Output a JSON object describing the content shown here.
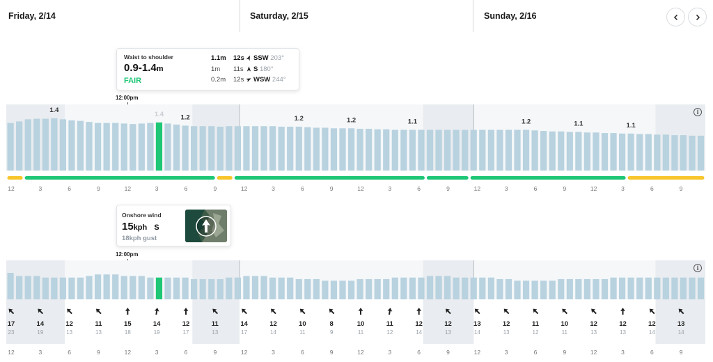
{
  "days": [
    {
      "label": "Friday, 2/14"
    },
    {
      "label": "Saturday, 2/15"
    },
    {
      "label": "Sunday, 2/16"
    }
  ],
  "nav": {
    "prev_icon": "chevron-left-icon",
    "next_icon": "chevron-right-icon"
  },
  "now_label": "12:00pm",
  "surf_tooltip": {
    "label": "Waist to shoulder",
    "height_main": "0.9-1.4",
    "height_unit": "m",
    "rating": "FAIR",
    "swells": [
      {
        "height": "1.1m",
        "period": "12s",
        "dir": "SSW",
        "deg": "203°",
        "rot": 203
      },
      {
        "height": "1m",
        "period": "11s",
        "dir": "S",
        "deg": "180°",
        "rot": 180
      },
      {
        "height": "0.2m",
        "period": "12s",
        "dir": "WSW",
        "deg": "244°",
        "rot": 244
      }
    ]
  },
  "wind_tooltip": {
    "label": "Onshore wind",
    "speed": "15",
    "unit": "kph",
    "dir": "S",
    "gust": "18kph gust"
  },
  "colors": {
    "bar": "#b8d2df",
    "bar_selected": "#1ec776",
    "night": "#e9ecf0",
    "rating_good": "#1ec776",
    "rating_poor": "#f8c62c"
  },
  "surf_chart": {
    "heights": [
      0.9,
      0.93,
      0.97,
      0.98,
      0.98,
      0.99,
      0.97,
      0.95,
      0.94,
      0.92,
      0.9,
      0.9,
      0.9,
      0.89,
      0.88,
      0.89,
      0.9,
      0.91,
      0.89,
      0.87,
      0.85,
      0.84,
      0.84,
      0.84,
      0.83,
      0.84,
      0.84,
      0.84,
      0.84,
      0.84,
      0.84,
      0.83,
      0.83,
      0.83,
      0.82,
      0.81,
      0.81,
      0.8,
      0.8,
      0.8,
      0.79,
      0.79,
      0.78,
      0.78,
      0.77,
      0.77,
      0.77,
      0.77,
      0.77,
      0.77,
      0.77,
      0.77,
      0.77,
      0.77,
      0.77,
      0.77,
      0.77,
      0.77,
      0.77,
      0.77,
      0.76,
      0.75,
      0.74,
      0.74,
      0.73,
      0.73,
      0.72,
      0.72,
      0.71,
      0.71,
      0.7,
      0.7,
      0.69,
      0.69,
      0.68,
      0.68,
      0.67,
      0.67,
      0.66,
      0.66
    ],
    "peak_labels": [
      {
        "index": 5,
        "text": "1.4"
      },
      {
        "index": 17,
        "text": "1.4"
      },
      {
        "index": 20,
        "text": "1.2"
      },
      {
        "index": 33,
        "text": "1.2"
      },
      {
        "index": 39,
        "text": "1.2"
      },
      {
        "index": 46,
        "text": "1.1"
      },
      {
        "index": 59,
        "text": "1.2"
      },
      {
        "index": 65,
        "text": "1.1"
      },
      {
        "index": 71,
        "text": "1.1"
      }
    ],
    "selected_index": 17,
    "rating_segments": [
      {
        "start": 0,
        "end": 2,
        "rating": "poor"
      },
      {
        "start": 2,
        "end": 24,
        "rating": "good"
      },
      {
        "start": 24,
        "end": 26,
        "rating": "poor"
      },
      {
        "start": 26,
        "end": 48,
        "rating": "good"
      },
      {
        "start": 48,
        "end": 53,
        "rating": "good"
      },
      {
        "start": 53,
        "end": 71,
        "rating": "good"
      },
      {
        "start": 71,
        "end": 80,
        "rating": "poor"
      }
    ],
    "time_ticks": [
      "12",
      "3",
      "6",
      "9",
      "12",
      "3",
      "6",
      "9",
      "12",
      "3",
      "6",
      "9",
      "12",
      "3",
      "6",
      "9",
      "12",
      "3",
      "6",
      "9",
      "12",
      "3",
      "6",
      "9"
    ]
  },
  "wind_chart": {
    "speeds": [
      17,
      15,
      15,
      15,
      14,
      14,
      14,
      14,
      14,
      15,
      16,
      16,
      16,
      15,
      15,
      15,
      14,
      14,
      14,
      14,
      14,
      13,
      13,
      13,
      13,
      14,
      14,
      15,
      15,
      15,
      14,
      14,
      14,
      13,
      13,
      13,
      12,
      12,
      12,
      12,
      13,
      13,
      13,
      13,
      14,
      14,
      14,
      14,
      15,
      15,
      15,
      14,
      14,
      14,
      14,
      14,
      13,
      13,
      12,
      12,
      12,
      12,
      12,
      13,
      13,
      13,
      13,
      13,
      13,
      14,
      14,
      14,
      14,
      14,
      14,
      14,
      14,
      14,
      14,
      14
    ],
    "selected_index": 17,
    "columns": [
      {
        "speed": "17",
        "gust": "23",
        "rot": 315
      },
      {
        "speed": "14",
        "gust": "19",
        "rot": 315
      },
      {
        "speed": "12",
        "gust": "13",
        "rot": 315
      },
      {
        "speed": "11",
        "gust": "13",
        "rot": 315
      },
      {
        "speed": "15",
        "gust": "18",
        "rot": 0
      },
      {
        "speed": "14",
        "gust": "19",
        "rot": 10
      },
      {
        "speed": "12",
        "gust": "17",
        "rot": 0
      },
      {
        "speed": "11",
        "gust": "13",
        "rot": 315
      },
      {
        "speed": "14",
        "gust": "17",
        "rot": 315
      },
      {
        "speed": "12",
        "gust": "14",
        "rot": 315
      },
      {
        "speed": "10",
        "gust": "11",
        "rot": 315
      },
      {
        "speed": "8",
        "gust": "9",
        "rot": 315
      },
      {
        "speed": "10",
        "gust": "11",
        "rot": 0
      },
      {
        "speed": "11",
        "gust": "12",
        "rot": 10
      },
      {
        "speed": "12",
        "gust": "14",
        "rot": 0
      },
      {
        "speed": "12",
        "gust": "13",
        "rot": 315
      },
      {
        "speed": "13",
        "gust": "14",
        "rot": 315
      },
      {
        "speed": "12",
        "gust": "13",
        "rot": 315
      },
      {
        "speed": "11",
        "gust": "12",
        "rot": 315
      },
      {
        "speed": "10",
        "gust": "11",
        "rot": 315
      },
      {
        "speed": "12",
        "gust": "13",
        "rot": 315
      },
      {
        "speed": "12",
        "gust": "13",
        "rot": 0
      },
      {
        "speed": "12",
        "gust": "14",
        "rot": 315
      },
      {
        "speed": "13",
        "gust": "14",
        "rot": 315
      }
    ],
    "time_ticks": [
      "12",
      "3",
      "6",
      "9",
      "12",
      "3",
      "6",
      "9",
      "12",
      "3",
      "6",
      "9",
      "12",
      "3",
      "6",
      "9",
      "12",
      "3",
      "6",
      "9",
      "12",
      "3",
      "6",
      "9"
    ]
  }
}
